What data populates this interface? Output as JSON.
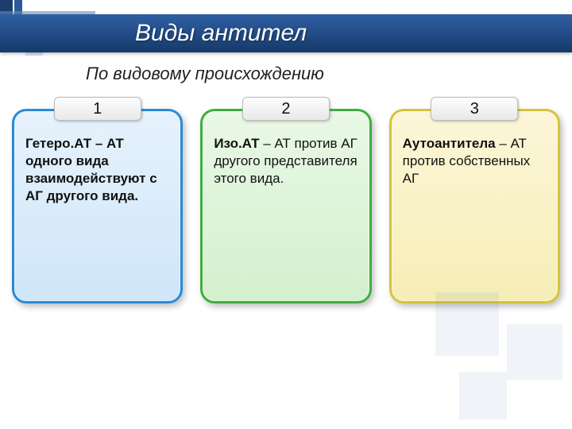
{
  "title": "Виды антител",
  "subtitle": "По видовому происхождению",
  "colors": {
    "title_bar_top": "#2f5fa3",
    "title_bar_bottom": "#153a6a",
    "card_blue_border": "#2a8ad6",
    "card_green_border": "#3fae3f",
    "card_yellow_border": "#d6c33a"
  },
  "cards": [
    {
      "number": "1",
      "color": "blue",
      "term": "Гетеро.АТ",
      "rest": " – АТ одного вида взаимодействуют с АГ другого вида.",
      "bold_all": true
    },
    {
      "number": "2",
      "color": "green",
      "term": "Изо.АТ",
      "rest": " – АТ против АГ другого представителя этого вида.",
      "bold_all": false
    },
    {
      "number": "3",
      "color": "yellow",
      "term": "Аутоантитела",
      "rest": " – АТ против собственных АГ",
      "bold_all": false
    }
  ]
}
